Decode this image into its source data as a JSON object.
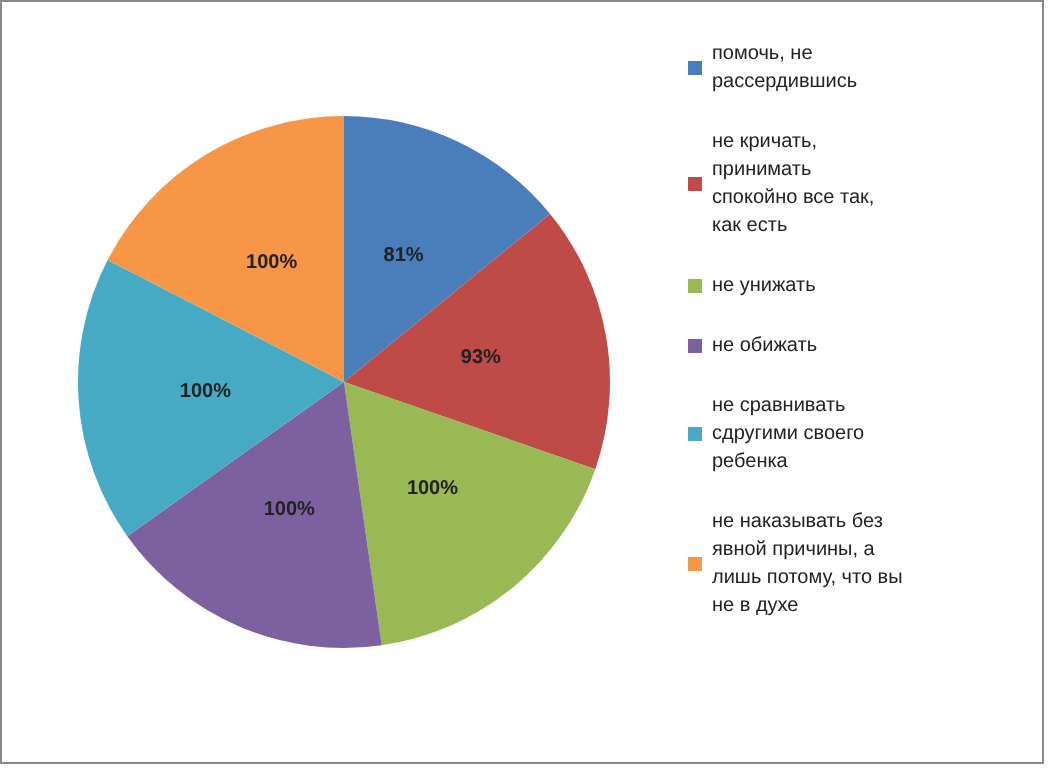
{
  "chart_data": {
    "type": "pie",
    "categories": [
      "помочь, не рассердившись",
      "не кричать, принимать спокойно все так, как есть",
      "не унижать",
      "не обижать",
      "не сравнивать сдругими своего ребенка",
      "не наказывать без явной причины, а лишь потому, что вы не в духе"
    ],
    "values": [
      81,
      93,
      100,
      100,
      100,
      100
    ],
    "value_labels": [
      "81%",
      "93%",
      "100%",
      "100%",
      "100%",
      "100%"
    ],
    "colors": [
      "#4a7ebb",
      "#be4b48",
      "#98b954",
      "#7d60a0",
      "#46aac5",
      "#f79646"
    ],
    "legend": "right"
  }
}
